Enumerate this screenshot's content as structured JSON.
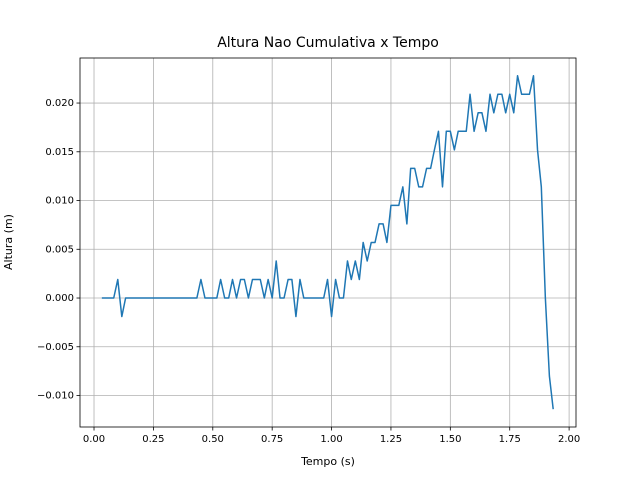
{
  "chart_data": {
    "type": "line",
    "title": "Altura Nao Cumulativa x Tempo",
    "xlabel": "Tempo (s)",
    "ylabel": "Altura (m)",
    "color": "#1f77b4",
    "grid": true,
    "xlim": [
      -0.059,
      2.029
    ],
    "ylim": [
      -0.01323,
      0.02462
    ],
    "xticks": [
      {
        "value": 0,
        "label": "0.00"
      },
      {
        "value": 0.25,
        "label": "0.25"
      },
      {
        "value": 0.5,
        "label": "0.50"
      },
      {
        "value": 0.75,
        "label": "0.75"
      },
      {
        "value": 1,
        "label": "1.00"
      },
      {
        "value": 1.25,
        "label": "1.25"
      },
      {
        "value": 1.5,
        "label": "1.50"
      },
      {
        "value": 1.75,
        "label": "1.75"
      },
      {
        "value": 2,
        "label": "2.00"
      }
    ],
    "yticks": [
      {
        "value": -0.01,
        "label": "−0.010"
      },
      {
        "value": -0.005,
        "label": "−0.005"
      },
      {
        "value": 0,
        "label": "0.000"
      },
      {
        "value": 0.005,
        "label": "0.005"
      },
      {
        "value": 0.01,
        "label": "0.010"
      },
      {
        "value": 0.015,
        "label": "0.015"
      },
      {
        "value": 0.02,
        "label": "0.020"
      }
    ],
    "x": [
      0.033,
      0.05,
      0.067,
      0.083,
      0.1,
      0.117,
      0.133,
      0.15,
      0.167,
      0.183,
      0.2,
      0.217,
      0.233,
      0.25,
      0.267,
      0.283,
      0.3,
      0.317,
      0.333,
      0.35,
      0.367,
      0.383,
      0.4,
      0.417,
      0.433,
      0.45,
      0.467,
      0.483,
      0.5,
      0.517,
      0.533,
      0.55,
      0.567,
      0.583,
      0.6,
      0.617,
      0.633,
      0.65,
      0.667,
      0.683,
      0.7,
      0.717,
      0.733,
      0.75,
      0.767,
      0.783,
      0.8,
      0.817,
      0.833,
      0.85,
      0.867,
      0.883,
      0.9,
      0.917,
      0.933,
      0.95,
      0.967,
      0.983,
      1.0,
      1.017,
      1.033,
      1.05,
      1.067,
      1.083,
      1.1,
      1.117,
      1.133,
      1.15,
      1.167,
      1.183,
      1.2,
      1.217,
      1.233,
      1.25,
      1.267,
      1.283,
      1.3,
      1.317,
      1.333,
      1.35,
      1.367,
      1.383,
      1.4,
      1.417,
      1.433,
      1.45,
      1.467,
      1.483,
      1.5,
      1.517,
      1.533,
      1.55,
      1.567,
      1.583,
      1.6,
      1.617,
      1.633,
      1.65,
      1.667,
      1.683,
      1.7,
      1.717,
      1.733,
      1.75,
      1.767,
      1.783,
      1.8,
      1.817,
      1.833,
      1.85,
      1.867,
      1.883,
      1.9,
      1.917,
      1.933
    ],
    "values": [
      0,
      0,
      0,
      0,
      0.0019,
      -0.0019,
      0,
      0,
      0,
      0,
      0,
      0,
      0,
      0,
      0,
      0,
      0,
      0,
      0,
      0,
      0,
      0,
      0,
      0,
      0,
      0.0019,
      0,
      0,
      0,
      0,
      0.0019,
      0,
      0,
      0.0019,
      0,
      0.0019,
      0.0019,
      0,
      0.0019,
      0.0019,
      0.0019,
      0,
      0.0019,
      0,
      0.0038,
      0,
      0,
      0.0019,
      0.0019,
      -0.0019,
      0.0019,
      0,
      0,
      0,
      0,
      0,
      0,
      0.0019,
      -0.0019,
      0.0019,
      0,
      0,
      0.0038,
      0.0019,
      0.0038,
      0.0019,
      0.0057,
      0.0038,
      0.0057,
      0.0057,
      0.0076,
      0.0076,
      0.0057,
      0.0095,
      0.0095,
      0.0095,
      0.0114,
      0.0076,
      0.0133,
      0.0133,
      0.0114,
      0.0114,
      0.0133,
      0.0133,
      0.0152,
      0.0171,
      0.0114,
      0.0171,
      0.0171,
      0.0152,
      0.0171,
      0.0171,
      0.0171,
      0.0209,
      0.0171,
      0.019,
      0.019,
      0.0171,
      0.0209,
      0.019,
      0.0209,
      0.0209,
      0.019,
      0.0209,
      0.019,
      0.0228,
      0.0209,
      0.0209,
      0.0209,
      0.0228,
      0.0152,
      0.0114,
      0,
      -0.008,
      -0.0114
    ]
  }
}
